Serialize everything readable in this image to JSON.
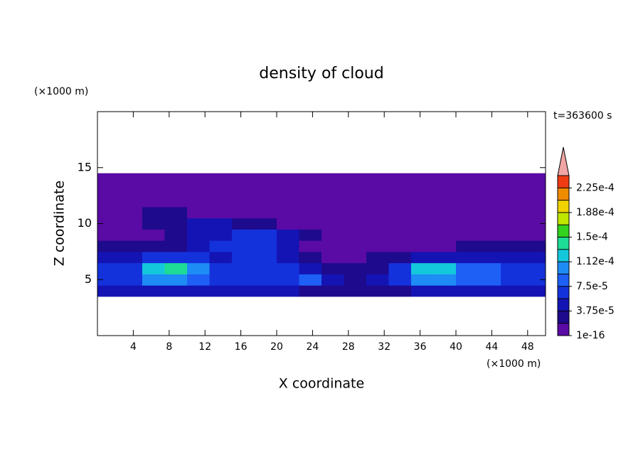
{
  "chart_data": {
    "type": "contour",
    "title": "density of cloud",
    "x_label": "X coordinate",
    "y_label": "Z coordinate",
    "x_unit": "(×1000 m)",
    "y_unit": "(×1000 m)",
    "annotation": "t=363600 s",
    "xlim": [
      0,
      50
    ],
    "ylim": [
      0,
      20
    ],
    "xticks": [
      4,
      8,
      12,
      16,
      20,
      24,
      28,
      32,
      36,
      40,
      44,
      48
    ],
    "yticks": [
      5,
      10,
      15
    ],
    "x_edges": [
      0,
      2.5,
      5,
      7.5,
      10,
      12.5,
      15,
      17.5,
      20,
      22.5,
      25,
      27.5,
      30,
      32.5,
      35,
      37.5,
      40,
      42.5,
      45,
      47.5,
      50
    ],
    "y_edges": [
      3.5,
      4.5,
      5.5,
      6.5,
      7.5,
      8.5,
      9.5,
      10.5,
      11.5,
      12.5,
      13.5,
      14.5
    ],
    "values": [
      [
        4e-05,
        4e-05,
        5e-05,
        5e-05,
        4e-05,
        4e-05,
        4e-05,
        4e-05,
        4e-05,
        3e-05,
        3e-05,
        2e-05,
        2e-05,
        3e-05,
        5e-05,
        5e-05,
        4e-05,
        4e-05,
        4e-05,
        4e-05
      ],
      [
        6e-05,
        7e-05,
        0.0001,
        0.00011,
        9e-05,
        6e-05,
        6e-05,
        7e-05,
        6e-05,
        8e-05,
        5e-05,
        3e-05,
        4e-05,
        6e-05,
        0.0001,
        0.00011,
        9e-05,
        8e-05,
        7e-05,
        6e-05
      ],
      [
        7e-05,
        6e-05,
        0.00012,
        0.000145,
        0.0001,
        6e-05,
        7e-05,
        6e-05,
        7e-05,
        4e-05,
        3e-05,
        2e-05,
        3e-05,
        6e-05,
        0.000125,
        0.00013,
        9e-05,
        8e-05,
        7e-05,
        6e-05
      ],
      [
        5e-05,
        5e-05,
        6e-05,
        6e-05,
        6e-05,
        5e-05,
        6e-05,
        6e-05,
        5e-05,
        2e-05,
        1e-05,
        1e-05,
        2e-05,
        3e-05,
        4e-05,
        4e-05,
        5e-05,
        4e-05,
        5e-05,
        5e-05
      ],
      [
        2e-05,
        2e-05,
        3e-05,
        3e-05,
        5e-05,
        6e-05,
        6e-05,
        6e-05,
        5e-05,
        1e-05,
        1e-05,
        1e-05,
        1e-05,
        1e-05,
        1e-05,
        1e-05,
        2e-05,
        2e-05,
        2e-05,
        2e-05
      ],
      [
        1e-05,
        1e-05,
        1e-05,
        2e-05,
        4e-05,
        5e-05,
        7e-05,
        6e-05,
        4e-05,
        2e-05,
        1e-05,
        1e-05,
        1e-05,
        1e-05,
        1e-05,
        1e-05,
        1e-05,
        1e-05,
        1e-05,
        1e-05
      ],
      [
        1e-05,
        1e-05,
        3e-05,
        3e-05,
        4e-05,
        4e-05,
        3e-05,
        2e-05,
        1e-05,
        1e-05,
        1e-05,
        1e-05,
        1e-05,
        1e-05,
        1e-05,
        1e-05,
        1e-05,
        1e-05,
        1e-05,
        1e-05
      ],
      [
        1e-05,
        1e-05,
        2e-05,
        2e-05,
        1e-05,
        1e-05,
        1e-05,
        1e-05,
        1e-05,
        1e-05,
        1e-05,
        1e-05,
        1e-05,
        1e-05,
        1e-05,
        1e-05,
        1e-05,
        1e-05,
        1e-05,
        1e-05
      ],
      [
        1e-05,
        1e-05,
        1e-05,
        1e-05,
        1e-05,
        1e-05,
        1e-05,
        1e-05,
        1e-05,
        1e-05,
        1e-05,
        1e-05,
        1e-05,
        1e-05,
        1e-05,
        1e-05,
        1e-05,
        1e-05,
        1e-05,
        1e-05
      ],
      [
        1e-05,
        1e-05,
        1e-05,
        1e-05,
        1e-05,
        1e-05,
        1e-05,
        1e-05,
        1e-05,
        1e-05,
        1e-05,
        1e-05,
        1e-05,
        1e-05,
        1e-05,
        1e-05,
        1e-05,
        1e-05,
        1e-05,
        1e-05
      ],
      [
        1e-05,
        1e-05,
        1e-05,
        1e-05,
        1e-05,
        1e-05,
        1e-05,
        1e-05,
        1e-05,
        1e-05,
        1e-05,
        1e-05,
        1e-05,
        1e-05,
        1e-05,
        1e-05,
        1e-05,
        1e-05,
        1e-05,
        1e-05
      ]
    ],
    "colorbar": {
      "levels": [
        1e-16,
        1.875e-05,
        3.75e-05,
        5.625e-05,
        7.5e-05,
        9.375e-05,
        0.0001125,
        0.00013125,
        0.00015,
        0.00016875,
        0.0001875,
        0.00020625,
        0.000225,
        0.00024375
      ],
      "colors": [
        "#5a0aa5",
        "#1e0a8c",
        "#1414b4",
        "#1432dc",
        "#1e5ff5",
        "#1e8cf5",
        "#14c8dc",
        "#1edc96",
        "#32d21e",
        "#bee600",
        "#f0d200",
        "#f08c00",
        "#f03c14"
      ],
      "extend_color": "#f0a5a5",
      "ticks": [
        {
          "value": 1e-16,
          "label": "1e-16"
        },
        {
          "value": 3.75e-05,
          "label": "3.75e-5"
        },
        {
          "value": 7.5e-05,
          "label": "7.5e-5"
        },
        {
          "value": 0.0001125,
          "label": "1.12e-4"
        },
        {
          "value": 0.00015,
          "label": "1.5e-4"
        },
        {
          "value": 0.0001875,
          "label": "1.88e-4"
        },
        {
          "value": 0.000225,
          "label": "2.25e-4"
        }
      ]
    }
  }
}
